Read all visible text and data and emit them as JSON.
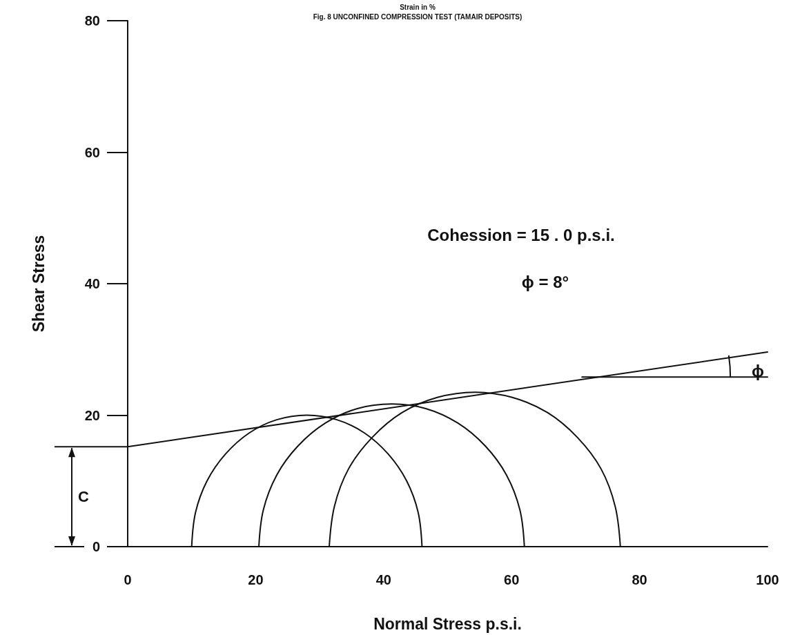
{
  "chart_data": {
    "type": "line",
    "xlabel": "Normal Stress p.s.i.",
    "ylabel": "Shear Stress",
    "xlim": [
      0,
      100
    ],
    "xticks": [
      0,
      20,
      40,
      60,
      80,
      100
    ],
    "ylim": [
      0,
      80
    ],
    "yticks": [
      0,
      20,
      40,
      60,
      80
    ],
    "grid": false,
    "marker": "none",
    "line_style": "solid",
    "annotations": [
      "Strain in %",
      "Fig. 8 UNCONFINED COMPRESSION TEST (TAMAIR DEPOSITS)",
      "Cohession = 15 . 0 p.s.i.",
      "ϕ = 8°",
      "ϕ",
      "C"
    ],
    "series": [
      {
        "color": "#111111",
        "x": [
          46,
          45.4,
          43.6,
          40.7,
          37,
          32.7,
          28,
          23.3,
          19,
          15.3,
          12.4,
          10.6,
          10
        ],
        "values": [
          0,
          5.2,
          10,
          14.1,
          17.3,
          19.3,
          20,
          19.3,
          17.3,
          14.1,
          10,
          5.2,
          0
        ]
      },
      {
        "color": "#111111",
        "x": [
          62,
          61.3,
          59.2,
          55.9,
          51.6,
          46.6,
          41.3,
          35.9,
          30.9,
          26.6,
          23.3,
          21.2,
          20.5
        ],
        "values": [
          0,
          5.6,
          10.9,
          15.3,
          18.8,
          21.0,
          21.7,
          21.0,
          18.8,
          15.3,
          10.9,
          5.6,
          0
        ]
      },
      {
        "color": "#111111",
        "x": [
          77,
          76.2,
          74,
          70.3,
          65.6,
          60.1,
          54.3,
          48.4,
          42.9,
          38.2,
          34.5,
          32.3,
          31.5
        ],
        "values": [
          0,
          6.1,
          11.8,
          16.6,
          20.4,
          22.7,
          23.5,
          22.7,
          20.4,
          16.6,
          11.8,
          6.1,
          0
        ]
      },
      {
        "color": "#111111",
        "x": [
          0,
          100
        ],
        "values": [
          15.2,
          29.6
        ]
      },
      {
        "color": "#111111",
        "x": [
          71,
          100
        ],
        "values": [
          25.8,
          25.8
        ]
      }
    ]
  }
}
